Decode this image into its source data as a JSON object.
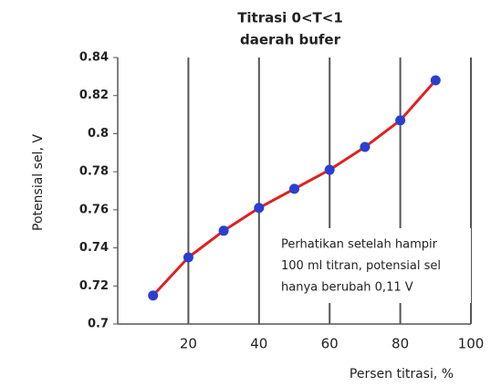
{
  "chart_data": {
    "type": "line",
    "title": [
      "Titrasi 0<T<1",
      "daerah bufer"
    ],
    "x_label": "Persen titrasi, %",
    "y_label": "Potensial sel, V",
    "x": [
      10,
      20,
      30,
      40,
      50,
      60,
      70,
      80,
      90
    ],
    "series": [
      {
        "name": "Potensial sel",
        "color": "#e02020",
        "marker_color": "#2a3fd0",
        "values": [
          0.715,
          0.735,
          0.749,
          0.761,
          0.771,
          0.781,
          0.793,
          0.807,
          0.828
        ]
      }
    ],
    "xlim": [
      0,
      100
    ],
    "xticks": [
      20,
      40,
      60,
      80,
      100
    ],
    "ylim": [
      0.7,
      0.84
    ],
    "yticks": [
      0.7,
      0.72,
      0.74,
      0.76,
      0.78,
      0.8,
      0.82,
      0.84
    ],
    "grid": "x",
    "annotation": [
      "Perhatikan setelah hampir",
      "100 ml titran, potensial sel",
      "hanya berubah 0,11 V"
    ]
  }
}
